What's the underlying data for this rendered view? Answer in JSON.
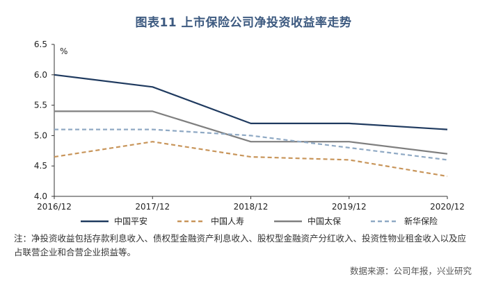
{
  "chart_data": {
    "type": "line",
    "title": "图表11  上市保险公司净投资收益率走势",
    "ylabel": "%",
    "xlabel": "",
    "categories": [
      "2016/12",
      "2017/12",
      "2018/12",
      "2019/12",
      "2020/12"
    ],
    "ylim": [
      4.0,
      6.5
    ],
    "yticks": [
      "4.0",
      "4.5",
      "5.0",
      "5.5",
      "6.0",
      "6.5"
    ],
    "series": [
      {
        "name": "中国平安",
        "values": [
          6.0,
          5.8,
          5.2,
          5.2,
          5.1
        ],
        "color": "#1f3a5f",
        "style": "solid"
      },
      {
        "name": "中国人寿",
        "values": [
          4.65,
          4.9,
          4.65,
          4.6,
          4.33
        ],
        "color": "#c8955a",
        "style": "dashed"
      },
      {
        "name": "中国太保",
        "values": [
          5.4,
          5.4,
          4.9,
          4.9,
          4.7
        ],
        "color": "#7f7f7f",
        "style": "solid"
      },
      {
        "name": "新华保险",
        "values": [
          5.1,
          5.1,
          5.0,
          4.8,
          4.6
        ],
        "color": "#8fa9c4",
        "style": "dashed"
      }
    ],
    "legend_position": "bottom",
    "grid": false
  },
  "note": "注：净投资收益包括存款利息收入、债权型金融资产利息收入、股权型金融资产分红收入、投资性物业租金收入以及应占联营企业和合营企业损益等。",
  "source": "数据来源：公司年报，兴业研究"
}
